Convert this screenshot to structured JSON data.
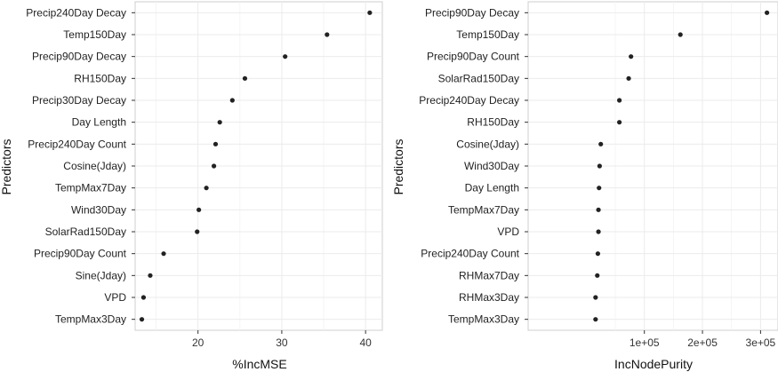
{
  "chart_data": [
    {
      "type": "scatter",
      "xlabel": "%IncMSE",
      "ylabel": "Predictors",
      "xlim": [
        12.5,
        42
      ],
      "xticks": [
        20,
        30,
        40
      ],
      "xtick_labels": [
        "20",
        "30",
        "40"
      ],
      "grid": true,
      "point_color": "#222222",
      "categories": [
        "Precip240Day Decay",
        "Temp150Day",
        "Precip90Day Decay",
        "RH150Day",
        "Precip30Day Decay",
        "Day Length",
        "Precip240Day Count",
        "Cosine(Jday)",
        "TempMax7Day",
        "Wind30Day",
        "SolarRad150Day",
        "Precip90Day Count",
        "Sine(Jday)",
        "VPD",
        "TempMax3Day"
      ],
      "values": [
        40.5,
        35.4,
        30.4,
        25.6,
        24.1,
        22.6,
        22.1,
        21.9,
        21.0,
        20.1,
        19.9,
        15.9,
        14.3,
        13.5,
        13.3
      ]
    },
    {
      "type": "scatter",
      "xlabel": "IncNodePurity",
      "ylabel": "Predictors",
      "xlim": [
        -100000,
        330000
      ],
      "xticks": [
        100000,
        200000,
        300000
      ],
      "xtick_labels": [
        "1e+05",
        "2e+05",
        "3e+05"
      ],
      "grid": true,
      "point_color": "#222222",
      "categories": [
        "Precip90Day Decay",
        "Temp150Day",
        "Precip90Day Count",
        "SolarRad150Day",
        "Precip240Day Decay",
        "RH150Day",
        "Cosine(Jday)",
        "Wind30Day",
        "Day Length",
        "TempMax7Day",
        "VPD",
        "Precip240Day Count",
        "RHMax7Day",
        "RHMax3Day",
        "TempMax3Day"
      ],
      "values": [
        311000,
        162000,
        77000,
        73000,
        57000,
        57000,
        25000,
        23000,
        22000,
        21000,
        21000,
        20000,
        19000,
        16000,
        16000
      ]
    }
  ]
}
